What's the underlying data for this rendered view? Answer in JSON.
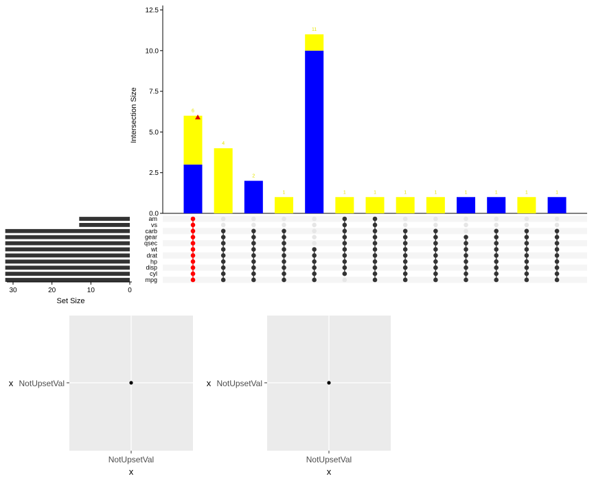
{
  "chart_data": [
    {
      "type": "bar",
      "chart": "intersection-size",
      "ylabel": "Intersection Size",
      "ylim": [
        0,
        12.5
      ],
      "yticks": [
        "0.0",
        "2.5",
        "5.0",
        "7.5",
        "10.0",
        "12.5"
      ],
      "ytick_values": [
        0,
        2.5,
        5,
        7.5,
        10,
        12.5
      ],
      "bar_labels": [
        "6",
        "4",
        "2",
        "1",
        "11",
        "1",
        "1",
        "1",
        "1",
        "1",
        "1",
        "1",
        "1"
      ],
      "series": [
        {
          "name": "blue",
          "color": "#0000ff",
          "values": [
            3,
            0,
            2,
            0,
            10,
            0,
            0,
            0,
            0,
            1,
            1,
            0,
            1
          ]
        },
        {
          "name": "yellow",
          "color": "#ffff00",
          "values": [
            3,
            4,
            0,
            1,
            1,
            1,
            1,
            1,
            1,
            0,
            0,
            1,
            0
          ]
        }
      ],
      "highlight_marker": {
        "column": 0,
        "value": 5.9,
        "color": "#dd0000",
        "shape": "triangle"
      }
    },
    {
      "type": "bar",
      "chart": "set-size",
      "orientation": "horizontal-reversed",
      "xlabel": "Set Size",
      "xlim": [
        0,
        32
      ],
      "xticks": [
        "30",
        "20",
        "10",
        "0"
      ],
      "xtick_values": [
        30,
        20,
        10,
        0
      ],
      "sets": [
        "am",
        "vs",
        "carb",
        "gear",
        "qsec",
        "wt",
        "drat",
        "hp",
        "disp",
        "cyl",
        "mpg"
      ],
      "values": [
        13,
        13,
        32,
        32,
        32,
        32,
        32,
        32,
        32,
        32,
        32
      ]
    },
    {
      "type": "table",
      "chart": "intersection-matrix",
      "highlight_column": 0,
      "highlight_color": "#ff0000",
      "active_color": "#333333",
      "inactive_color": "#e6e6e6",
      "matrix": [
        [
          1,
          1,
          1,
          1,
          1,
          1,
          1,
          1,
          1,
          1,
          1
        ],
        [
          0,
          0,
          1,
          1,
          1,
          1,
          1,
          1,
          1,
          1,
          1
        ],
        [
          0,
          0,
          1,
          1,
          1,
          1,
          1,
          1,
          1,
          1,
          1
        ],
        [
          0,
          0,
          1,
          1,
          1,
          1,
          1,
          1,
          1,
          1,
          1
        ],
        [
          0,
          0,
          0,
          0,
          0,
          1,
          1,
          1,
          1,
          1,
          1
        ],
        [
          1,
          1,
          1,
          1,
          1,
          1,
          1,
          1,
          1,
          1,
          0
        ],
        [
          1,
          1,
          1,
          1,
          1,
          1,
          1,
          1,
          1,
          1,
          1
        ],
        [
          0,
          0,
          1,
          1,
          1,
          1,
          1,
          1,
          1,
          1,
          1
        ],
        [
          0,
          0,
          1,
          1,
          1,
          1,
          1,
          1,
          1,
          1,
          1
        ],
        [
          0,
          0,
          0,
          1,
          1,
          1,
          1,
          1,
          1,
          1,
          1
        ],
        [
          0,
          0,
          1,
          1,
          1,
          1,
          1,
          1,
          1,
          1,
          1
        ],
        [
          0,
          0,
          1,
          1,
          1,
          1,
          1,
          1,
          1,
          1,
          1
        ],
        [
          0,
          0,
          1,
          1,
          1,
          1,
          1,
          1,
          1,
          1,
          1
        ]
      ]
    },
    {
      "type": "scatter",
      "chart": "attribute-plot-1",
      "xlabel": "x",
      "ylabel": "x",
      "x_category": "NotUpsetVal",
      "y_category": "NotUpsetVal",
      "points": [
        {
          "x": "NotUpsetVal",
          "y": "NotUpsetVal"
        }
      ],
      "panel_color": "#ebebeb"
    },
    {
      "type": "scatter",
      "chart": "attribute-plot-2",
      "xlabel": "x",
      "ylabel": "x",
      "x_category": "NotUpsetVal",
      "y_category": "NotUpsetVal",
      "points": [
        {
          "x": "NotUpsetVal",
          "y": "NotUpsetVal"
        }
      ],
      "panel_color": "#ebebeb"
    }
  ]
}
